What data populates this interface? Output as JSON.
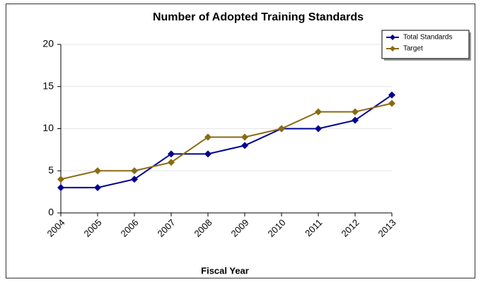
{
  "chart_data": {
    "type": "line",
    "title": "Number of Adopted Training Standards",
    "x_label": "Fiscal Year",
    "categories": [
      "2004",
      "2005",
      "2006",
      "2007",
      "2008",
      "2009",
      "2010",
      "2011",
      "2012",
      "2013"
    ],
    "series": [
      {
        "name": "Total Standards",
        "color": "#000090",
        "values": [
          3,
          3,
          4,
          7,
          7,
          8,
          10,
          10,
          11,
          14
        ]
      },
      {
        "name": "Target",
        "color": "#8b6a14",
        "values": [
          4,
          5,
          5,
          6,
          9,
          9,
          10,
          12,
          12,
          13
        ]
      }
    ],
    "ylim": [
      0,
      20
    ],
    "yticks": [
      0,
      5,
      10,
      15,
      20
    ],
    "grid": true,
    "legend": "top-right"
  }
}
